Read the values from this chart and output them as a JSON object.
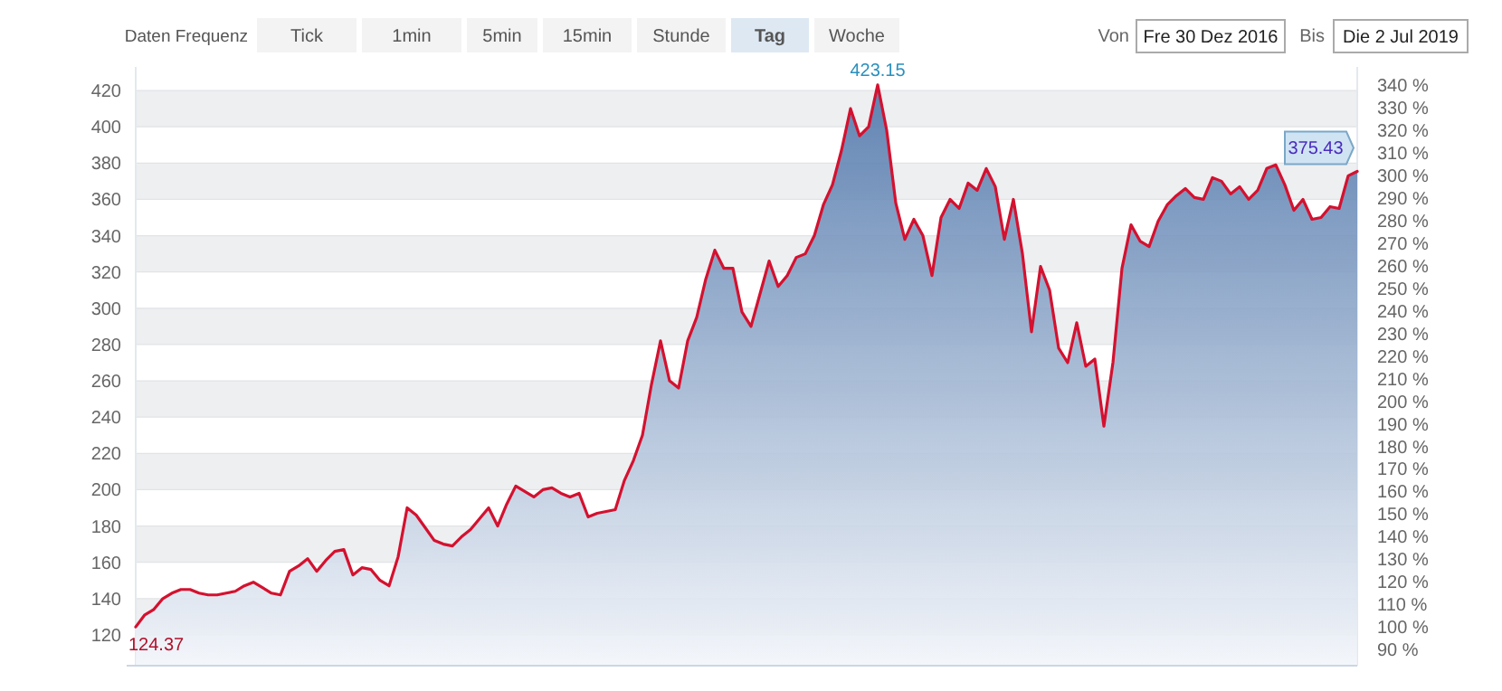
{
  "chart_data": {
    "type": "area",
    "annotations": [
      "Daten Frequenz",
      "Tick",
      "1min",
      "5min",
      "15min",
      "Stunde",
      "Tag",
      "Woche",
      "Von",
      "Fre 30 Dez 2016",
      "Bis",
      "Die 2 Jul 2019",
      {
        "text": "423.15",
        "y": 423.15
      },
      "124.37",
      "375.43"
    ],
    "categories": [
      null,
      null,
      null,
      null,
      null,
      null,
      null,
      null,
      null,
      null,
      null,
      null,
      null,
      null,
      null,
      null,
      null,
      null,
      null,
      null,
      null,
      null,
      null,
      null,
      null,
      null,
      null,
      null,
      null,
      null,
      null,
      null,
      null,
      null,
      null,
      null,
      null,
      null,
      null,
      null,
      null,
      null,
      null,
      null,
      null,
      null,
      null,
      null,
      null,
      null,
      null,
      null,
      null,
      null,
      null,
      null,
      null,
      null,
      null,
      null,
      null,
      null,
      null,
      null,
      null,
      null,
      null,
      null,
      null,
      null,
      null,
      null,
      null,
      null,
      null,
      null,
      null,
      null,
      null,
      null,
      null,
      null,
      null,
      null,
      null,
      null,
      null,
      null,
      null,
      null,
      null,
      null,
      null,
      null,
      null,
      null,
      null,
      null,
      null,
      null,
      null,
      null,
      null,
      null,
      null,
      null,
      null,
      null,
      null,
      null,
      null,
      null,
      null,
      null,
      null,
      null,
      null,
      null,
      null,
      null,
      null,
      null,
      null,
      null,
      null,
      null,
      null,
      null,
      null,
      null,
      null,
      null,
      null,
      null,
      null,
      null
    ],
    "series": [
      {
        "color": "#d4112f",
        "values": [
          124.37,
          131,
          134,
          140,
          143,
          145,
          145,
          143,
          142,
          142,
          143,
          144,
          147,
          149,
          146,
          143,
          142,
          155,
          158,
          162,
          155,
          161,
          166,
          167,
          153,
          157,
          156,
          150,
          147,
          163,
          190,
          186,
          179,
          172,
          170,
          169,
          174,
          178,
          184,
          190,
          180,
          192,
          202,
          199,
          196,
          200,
          201,
          198,
          196,
          198,
          185,
          187,
          188,
          189,
          205,
          216,
          230,
          258,
          282,
          260,
          256,
          282,
          295,
          316,
          332,
          322,
          322,
          298,
          290,
          308,
          326,
          312,
          318,
          328,
          330,
          340,
          357,
          368,
          387,
          410,
          395,
          400,
          423.15,
          398,
          358,
          338,
          349,
          340,
          318,
          350,
          360,
          355,
          369,
          365,
          377,
          367,
          338,
          360,
          330,
          287,
          323,
          310,
          278,
          270,
          292,
          268,
          272,
          235,
          270,
          322,
          346,
          337,
          334,
          348,
          357,
          362,
          366,
          361,
          360,
          372,
          370,
          363,
          367,
          360,
          365,
          377,
          379,
          368,
          354,
          360,
          349,
          350,
          356,
          355,
          373,
          375.43
        ]
      }
    ],
    "ylim": [
      103,
      433
    ],
    "yticks": [
      120,
      140,
      160,
      180,
      200,
      220,
      240,
      260,
      280,
      300,
      320,
      340,
      360,
      380,
      400,
      420
    ],
    "y2lim": [
      82.8,
      348.2
    ],
    "y2ticks": [
      {
        "value": 90,
        "label": "90 %"
      },
      {
        "value": 100,
        "label": "100 %"
      },
      {
        "value": 110,
        "label": "110 %"
      },
      {
        "value": 120,
        "label": "120 %"
      },
      {
        "value": 130,
        "label": "130 %"
      },
      {
        "value": 140,
        "label": "140 %"
      },
      {
        "value": 150,
        "label": "150 %"
      },
      {
        "value": 160,
        "label": "160 %"
      },
      {
        "value": 170,
        "label": "170 %"
      },
      {
        "value": 180,
        "label": "180 %"
      },
      {
        "value": 190,
        "label": "190 %"
      },
      {
        "value": 200,
        "label": "200 %"
      },
      {
        "value": 210,
        "label": "210 %"
      },
      {
        "value": 220,
        "label": "220 %"
      },
      {
        "value": 230,
        "label": "230 %"
      },
      {
        "value": 240,
        "label": "240 %"
      },
      {
        "value": 250,
        "label": "250 %"
      },
      {
        "value": 260,
        "label": "260 %"
      },
      {
        "value": 270,
        "label": "270 %"
      },
      {
        "value": 280,
        "label": "280 %"
      },
      {
        "value": 290,
        "label": "290 %"
      },
      {
        "value": 300,
        "label": "300 %"
      },
      {
        "value": 310,
        "label": "310 %"
      },
      {
        "value": 320,
        "label": "320 %"
      },
      {
        "value": 330,
        "label": "330 %"
      },
      {
        "value": 340,
        "label": "340 %"
      }
    ],
    "grid": "y"
  }
}
